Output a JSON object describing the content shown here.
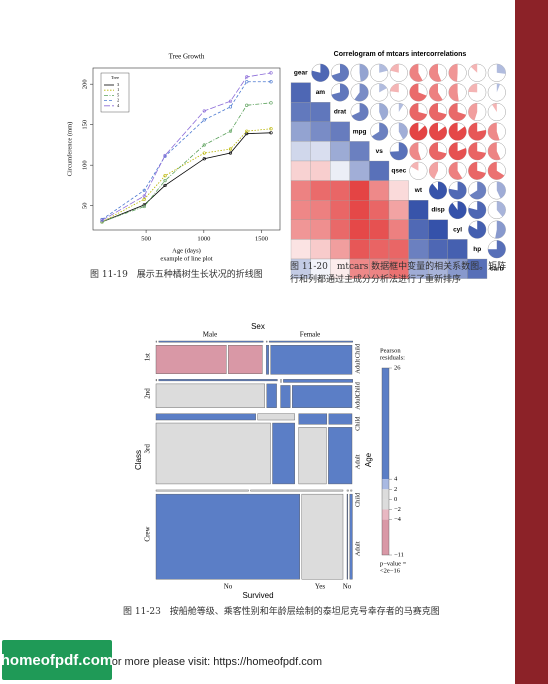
{
  "line_chart": {
    "title": "Tree Growth",
    "xlabel": "Age (days)",
    "subtitle": "example of line plot",
    "ylabel": "Circumference (mm)",
    "legend_title": "Tree",
    "x": [
      118,
      484,
      664,
      1004,
      1231,
      1372,
      1582
    ],
    "series": [
      {
        "name": "3",
        "color": "#000000",
        "values": [
          30,
          51,
          75,
          108,
          115,
          139,
          140
        ]
      },
      {
        "name": "1",
        "color": "#b8b400",
        "values": [
          30,
          58,
          87,
          115,
          120,
          142,
          145
        ]
      },
      {
        "name": "5",
        "color": "#5aa05a",
        "values": [
          30,
          49,
          81,
          125,
          142,
          174,
          177
        ]
      },
      {
        "name": "2",
        "color": "#4a78d0",
        "values": [
          33,
          69,
          111,
          156,
          172,
          203,
          203
        ]
      },
      {
        "name": "4",
        "color": "#8a6ad8",
        "values": [
          32,
          62,
          112,
          167,
          179,
          209,
          214
        ]
      }
    ],
    "xlim": [
      40,
      1660
    ],
    "ylim": [
      20,
      220
    ],
    "xticks": [
      500,
      1000,
      1500
    ],
    "yticks": [
      50,
      100,
      150,
      200
    ]
  },
  "correlogram": {
    "title": "Correlogram of mtcars  intercorrelations",
    "variables": [
      "gear",
      "am",
      "drat",
      "mpg",
      "vs",
      "qsec",
      "wt",
      "disp",
      "cyl",
      "hp",
      "carb"
    ],
    "correlations": [
      [],
      [
        0.79
      ],
      [
        0.7,
        0.71
      ],
      [
        0.48,
        0.6,
        0.68
      ],
      [
        0.21,
        0.17,
        0.44,
        0.66
      ],
      [
        -0.21,
        -0.23,
        0.09,
        0.42,
        0.74
      ],
      [
        -0.58,
        -0.69,
        -0.71,
        -0.87,
        -0.55,
        -0.17
      ],
      [
        -0.56,
        -0.59,
        -0.71,
        -0.85,
        -0.71,
        -0.43,
        0.89
      ],
      [
        -0.49,
        -0.52,
        -0.7,
        -0.85,
        -0.81,
        -0.59,
        0.78,
        0.9
      ],
      [
        -0.13,
        -0.24,
        -0.45,
        -0.78,
        -0.72,
        -0.71,
        0.66,
        0.79,
        0.83
      ],
      [
        0.27,
        0.06,
        -0.09,
        -0.55,
        -0.57,
        -0.66,
        0.43,
        0.39,
        0.53,
        0.75
      ]
    ],
    "positive_color": "#1f3fa0",
    "negative_color": "#e02828"
  },
  "mosaic": {
    "sex_title": "Sex",
    "class_title": "Class",
    "age_title": "Age",
    "survived_title": "Survived",
    "classes": [
      "1st",
      "2nd",
      "3rd",
      "Crew"
    ],
    "sexes": [
      "Male",
      "Female"
    ],
    "ages": [
      "Child",
      "Adult"
    ],
    "survived": [
      "No",
      "Yes"
    ],
    "counts": [
      [
        [
          [
            0,
            5
          ],
          [
            118,
            57
          ]
        ],
        [
          [
            0,
            1
          ],
          [
            4,
            140
          ]
        ]
      ],
      [
        [
          [
            0,
            11
          ],
          [
            154,
            14
          ]
        ],
        [
          [
            0,
            13
          ],
          [
            13,
            80
          ]
        ]
      ],
      [
        [
          [
            35,
            13
          ],
          [
            387,
            75
          ]
        ],
        [
          [
            17,
            14
          ],
          [
            89,
            76
          ]
        ]
      ],
      [
        [
          [
            0,
            0
          ],
          [
            670,
            192
          ]
        ],
        [
          [
            0,
            0
          ],
          [
            3,
            20
          ]
        ]
      ]
    ],
    "colors": [
      [
        [
          [
            "#dcdcdc",
            "#5b7ec6"
          ],
          [
            "#d998a6",
            "#d998a6"
          ]
        ],
        [
          [
            "#dcdcdc",
            "#5b7ec6"
          ],
          [
            "#5b7ec6",
            "#5b7ec6"
          ]
        ]
      ],
      [
        [
          [
            "#dcdcdc",
            "#5b7ec6"
          ],
          [
            "#dcdcdc",
            "#5b7ec6"
          ]
        ],
        [
          [
            "#dcdcdc",
            "#5b7ec6"
          ],
          [
            "#5b7ec6",
            "#5b7ec6"
          ]
        ]
      ],
      [
        [
          [
            "#5b7ec6",
            "#dcdcdc"
          ],
          [
            "#dcdcdc",
            "#5b7ec6"
          ]
        ],
        [
          [
            "#5b7ec6",
            "#5b7ec6"
          ],
          [
            "#dcdcdc",
            "#5b7ec6"
          ]
        ]
      ],
      [
        [
          [
            "#dcdcdc",
            "#dcdcdc"
          ],
          [
            "#5b7ec6",
            "#dcdcdc"
          ]
        ],
        [
          [
            "#dcdcdc",
            "#dcdcdc"
          ],
          [
            "#5b7ec6",
            "#5b7ec6"
          ]
        ]
      ]
    ],
    "legend_title": [
      "Pearson",
      "residuals:"
    ],
    "legend_ticks": [
      26,
      4,
      2,
      0,
      {
        "value": -2,
        "label": "−2"
      },
      {
        "value": -4,
        "label": "−4"
      },
      {
        "value": -11,
        "label": "−11"
      }
    ],
    "legend_colors": [
      "#5b7ec6",
      "#a9b9e2",
      "#dcdcdc",
      "#dcdcdc",
      "#e8b8c2",
      "#d998a6"
    ],
    "p_value": [
      "p−value =",
      "<2e−16"
    ]
  },
  "captions": {
    "fig_11_19": "图 11-19　展示五种橘树生长状况的折线图",
    "fig_11_20_number": "图 11-20",
    "fig_11_20_text": "mtcars 数据框中变量的相关系数图。矩阵行和列都通过主成分分析法进行了重新排序",
    "fig_11_23": "图 11-23　按船舱等级、乘客性别和年龄层绘制的泰坦尼克号幸存者的马赛克图"
  },
  "watermark": {
    "logo": "homeofpdf.com",
    "text": "For more please visit: https://homeofpdf.com"
  }
}
